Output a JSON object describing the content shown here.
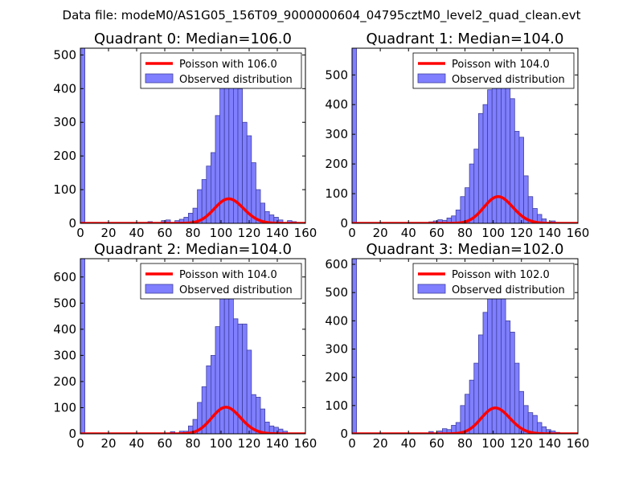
{
  "figure": {
    "suptitle": "Data file: modeM0/AS1G05_156T09_9000000604_04795cztM0_level2_quad_clean.evt"
  },
  "colors": {
    "bars": "#7f7fff",
    "bar_edge": "#4040a0",
    "poisson": "#ff0000"
  },
  "chart_data": [
    {
      "type": "bar",
      "title": "Quadrant 0: Median=106.0",
      "xlim": [
        0,
        160
      ],
      "ylim": [
        0,
        520
      ],
      "xticks": [
        0,
        20,
        40,
        60,
        80,
        100,
        120,
        140,
        160
      ],
      "yticks": [
        0,
        100,
        200,
        300,
        400,
        500
      ],
      "bin_width": 3.2,
      "bins": [
        [
          0,
          520
        ],
        [
          48,
          5
        ],
        [
          57.6,
          8
        ],
        [
          60.8,
          10
        ],
        [
          67.2,
          8
        ],
        [
          70.4,
          12
        ],
        [
          73.6,
          18
        ],
        [
          76.8,
          30
        ],
        [
          80,
          45
        ],
        [
          83.2,
          100
        ],
        [
          86.4,
          130
        ],
        [
          89.6,
          170
        ],
        [
          92.8,
          210
        ],
        [
          96,
          320
        ],
        [
          99.2,
          410
        ],
        [
          102.4,
          430
        ],
        [
          105.6,
          420
        ],
        [
          108.8,
          440
        ],
        [
          112,
          400
        ],
        [
          115.2,
          300
        ],
        [
          118.4,
          260
        ],
        [
          121.6,
          180
        ],
        [
          124.8,
          100
        ],
        [
          128,
          60
        ],
        [
          131.2,
          35
        ],
        [
          134.4,
          25
        ],
        [
          137.6,
          18
        ],
        [
          140.8,
          10
        ],
        [
          147.2,
          8
        ],
        [
          150.4,
          5
        ]
      ],
      "legend": {
        "position": "upper right",
        "line": "Poisson with 106.0",
        "bars": "Observed distribution"
      },
      "poisson": {
        "lambda": 106.0,
        "scale": 1880
      }
    },
    {
      "type": "bar",
      "title": "Quadrant 1: Median=104.0",
      "xlim": [
        0,
        160
      ],
      "ylim": [
        0,
        590
      ],
      "xticks": [
        0,
        20,
        40,
        60,
        80,
        100,
        120,
        140,
        160
      ],
      "yticks": [
        0,
        100,
        200,
        300,
        400,
        500
      ],
      "bin_width": 3.2,
      "bins": [
        [
          0,
          590
        ],
        [
          54.4,
          5
        ],
        [
          57.6,
          8
        ],
        [
          60.8,
          12
        ],
        [
          64,
          10
        ],
        [
          67.2,
          18
        ],
        [
          70.4,
          25
        ],
        [
          73.6,
          45
        ],
        [
          76.8,
          90
        ],
        [
          80,
          120
        ],
        [
          83.2,
          200
        ],
        [
          86.4,
          250
        ],
        [
          89.6,
          370
        ],
        [
          92.8,
          400
        ],
        [
          96,
          450
        ],
        [
          99.2,
          500
        ],
        [
          102.4,
          540
        ],
        [
          105.6,
          520
        ],
        [
          108.8,
          480
        ],
        [
          112,
          420
        ],
        [
          115.2,
          310
        ],
        [
          118.4,
          290
        ],
        [
          121.6,
          160
        ],
        [
          124.8,
          90
        ],
        [
          128,
          50
        ],
        [
          131.2,
          30
        ],
        [
          134.4,
          15
        ],
        [
          140.8,
          8
        ]
      ],
      "legend": {
        "position": "upper right",
        "line": "Poisson with 104.0",
        "bars": "Observed distribution"
      },
      "poisson": {
        "lambda": 104.0,
        "scale": 2300
      }
    },
    {
      "type": "bar",
      "title": "Quadrant 2: Median=104.0",
      "xlim": [
        0,
        160
      ],
      "ylim": [
        0,
        670
      ],
      "xticks": [
        0,
        20,
        40,
        60,
        80,
        100,
        120,
        140,
        160
      ],
      "yticks": [
        0,
        100,
        200,
        300,
        400,
        500,
        600
      ],
      "bin_width": 3.2,
      "bins": [
        [
          0,
          670
        ],
        [
          64,
          8
        ],
        [
          70.4,
          10
        ],
        [
          73.6,
          10
        ],
        [
          76.8,
          30
        ],
        [
          80,
          55
        ],
        [
          83.2,
          120
        ],
        [
          86.4,
          180
        ],
        [
          89.6,
          260
        ],
        [
          92.8,
          300
        ],
        [
          96,
          410
        ],
        [
          99.2,
          530
        ],
        [
          102.4,
          560
        ],
        [
          105.6,
          520
        ],
        [
          108.8,
          440
        ],
        [
          112,
          420
        ],
        [
          115.2,
          420
        ],
        [
          118.4,
          320
        ],
        [
          121.6,
          150
        ],
        [
          124.8,
          140
        ],
        [
          128,
          95
        ],
        [
          131.2,
          45
        ],
        [
          134.4,
          30
        ],
        [
          137.6,
          25
        ],
        [
          140.8,
          18
        ],
        [
          144,
          10
        ]
      ],
      "legend": {
        "position": "upper right",
        "line": "Poisson with 104.0",
        "bars": "Observed distribution"
      },
      "poisson": {
        "lambda": 104.0,
        "scale": 2600
      }
    },
    {
      "type": "bar",
      "title": "Quadrant 3: Median=102.0",
      "xlim": [
        0,
        160
      ],
      "ylim": [
        0,
        620
      ],
      "xticks": [
        0,
        20,
        40,
        60,
        80,
        100,
        120,
        140,
        160
      ],
      "yticks": [
        0,
        100,
        200,
        300,
        400,
        500,
        600
      ],
      "bin_width": 3.2,
      "bins": [
        [
          0,
          620
        ],
        [
          54.4,
          8
        ],
        [
          60.8,
          10
        ],
        [
          64,
          18
        ],
        [
          67.2,
          15
        ],
        [
          70.4,
          30
        ],
        [
          73.6,
          40
        ],
        [
          76.8,
          100
        ],
        [
          80,
          140
        ],
        [
          83.2,
          190
        ],
        [
          86.4,
          250
        ],
        [
          89.6,
          350
        ],
        [
          92.8,
          430
        ],
        [
          96,
          480
        ],
        [
          99.2,
          530
        ],
        [
          102.4,
          560
        ],
        [
          105.6,
          480
        ],
        [
          108.8,
          400
        ],
        [
          112,
          360
        ],
        [
          115.2,
          250
        ],
        [
          118.4,
          150
        ],
        [
          121.6,
          100
        ],
        [
          124.8,
          75
        ],
        [
          128,
          65
        ],
        [
          131.2,
          40
        ],
        [
          134.4,
          25
        ],
        [
          137.6,
          15
        ],
        [
          140.8,
          10
        ],
        [
          144,
          5
        ]
      ],
      "legend": {
        "position": "upper right",
        "line": "Poisson with 102.0",
        "bars": "Observed distribution"
      },
      "poisson": {
        "lambda": 102.0,
        "scale": 2320
      }
    }
  ]
}
